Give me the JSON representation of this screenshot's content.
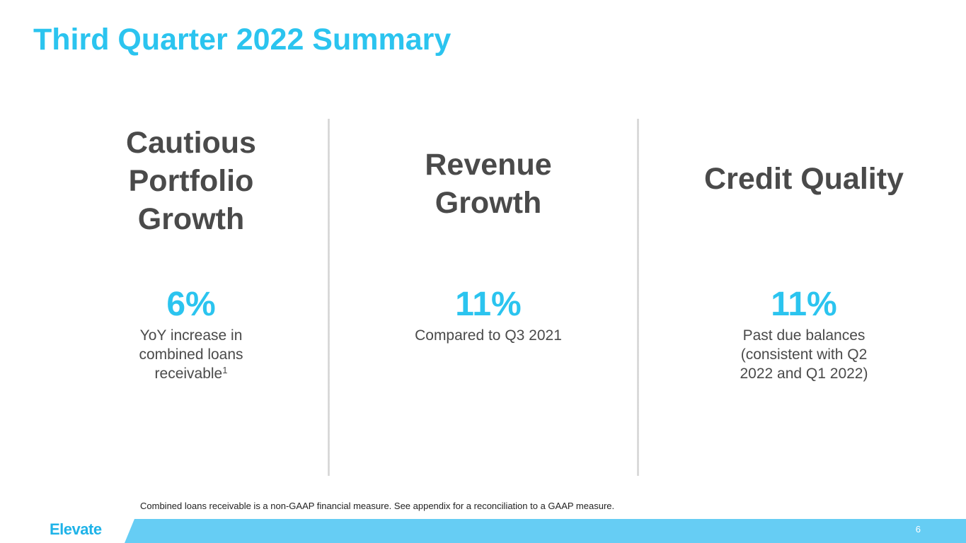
{
  "title": "Third Quarter 2022 Summary",
  "columns": [
    {
      "heading_lines": [
        "Cautious",
        "Portfolio",
        "Growth"
      ],
      "stat": "6%",
      "description_lines": [
        "YoY increase in",
        "combined loans",
        "receivable"
      ],
      "footnote_marker": "1"
    },
    {
      "heading_lines": [
        "Revenue",
        "Growth"
      ],
      "stat": "11%",
      "description_lines": [
        "Compared to Q3 2021"
      ]
    },
    {
      "heading_lines": [
        "Credit Quality"
      ],
      "stat": "11%",
      "description_lines": [
        "Past due balances",
        "(consistent with Q2",
        "2022 and Q1 2022)"
      ]
    }
  ],
  "footnote": "Combined loans receivable is a non-GAAP financial measure. See appendix for a reconciliation to a GAAP measure.",
  "footer": {
    "logo_text": "Elevate",
    "page_number": "6"
  },
  "colors": {
    "accent": "#2bc4ef",
    "heading": "#4a4a4a",
    "footer_bar": "#66cdf4"
  }
}
